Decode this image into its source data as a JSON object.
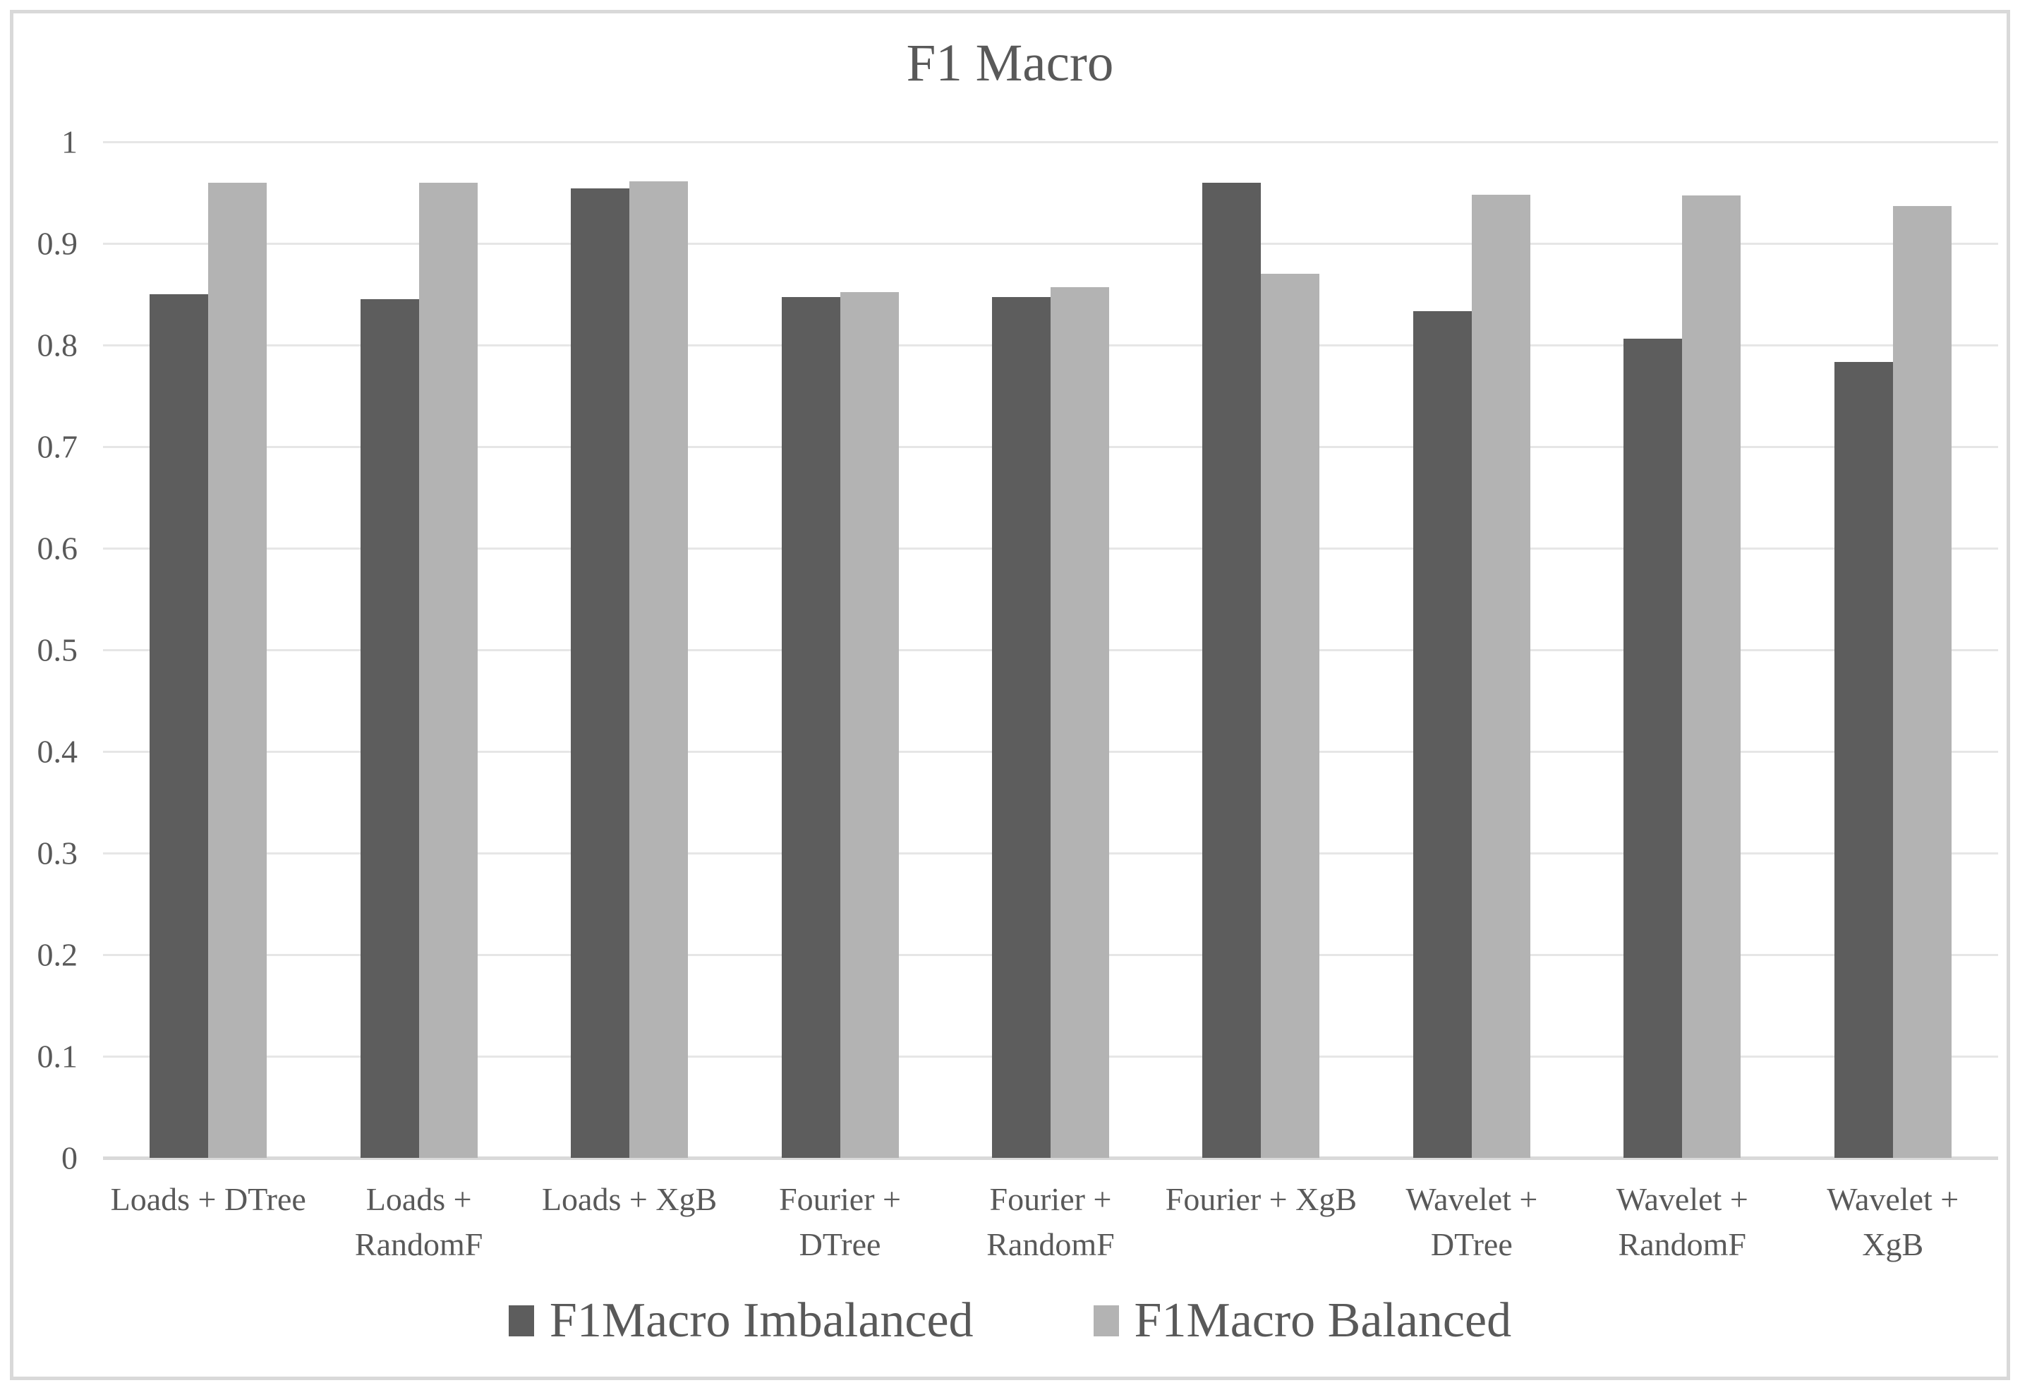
{
  "title": "F1 Macro",
  "y_axis": {
    "ticks": [
      "1",
      "0.9",
      "0.8",
      "0.7",
      "0.6",
      "0.5",
      "0.4",
      "0.3",
      "0.2",
      "0.1",
      "0"
    ]
  },
  "legend": {
    "items": [
      {
        "label": "F1Macro Imbalanced",
        "color": "#5d5d5d"
      },
      {
        "label": "F1Macro Balanced",
        "color": "#b3b3b3"
      }
    ]
  },
  "colors": {
    "text": "#595959",
    "gridline": "#e6e6e6",
    "baseline": "#d9d9d9",
    "frame_border": "#d9d9d9",
    "background": "#ffffff",
    "series_imbalanced": "#5d5d5d",
    "series_balanced": "#b3b3b3"
  },
  "chart_data": {
    "type": "bar",
    "title": "F1 Macro",
    "categories": [
      "Loads + DTree",
      "Loads + RandomF",
      "Loads + XgB",
      "Fourier + DTree",
      "Fourier + RandomF",
      "Fourier + XgB",
      "Wavelet + DTree",
      "Wavelet + RandomF",
      "Wavelet + XgB"
    ],
    "category_label_lines": [
      [
        "Loads + DTree"
      ],
      [
        "Loads +",
        "RandomF"
      ],
      [
        "Loads + XgB"
      ],
      [
        "Fourier +",
        "DTree"
      ],
      [
        "Fourier +",
        "RandomF"
      ],
      [
        "Fourier + XgB"
      ],
      [
        "Wavelet +",
        "DTree"
      ],
      [
        "Wavelet +",
        "RandomF"
      ],
      [
        "Wavelet +",
        "XgB"
      ]
    ],
    "series": [
      {
        "name": "F1Macro Imbalanced",
        "color": "#5d5d5d",
        "values": [
          0.85,
          0.845,
          0.954,
          0.847,
          0.847,
          0.96,
          0.833,
          0.806,
          0.783
        ]
      },
      {
        "name": "F1Macro Balanced",
        "color": "#b3b3b3",
        "values": [
          0.96,
          0.96,
          0.961,
          0.852,
          0.857,
          0.87,
          0.948,
          0.947,
          0.937
        ]
      }
    ],
    "xlabel": "",
    "ylabel": "",
    "ylim": [
      0,
      1
    ],
    "ytick_step": 0.1,
    "grid": true,
    "legend_position": "bottom"
  }
}
